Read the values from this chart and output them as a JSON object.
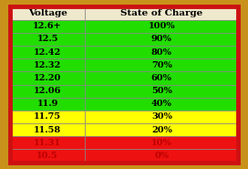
{
  "headers": [
    "Voltage",
    "State of Charge"
  ],
  "rows": [
    [
      "12.6+",
      "100%"
    ],
    [
      "12.5",
      "90%"
    ],
    [
      "12.42",
      "80%"
    ],
    [
      "12.32",
      "70%"
    ],
    [
      "12.20",
      "60%"
    ],
    [
      "12.06",
      "50%"
    ],
    [
      "11.9",
      "40%"
    ],
    [
      "11.75",
      "30%"
    ],
    [
      "11.58",
      "20%"
    ],
    [
      "11.31",
      "10%"
    ],
    [
      "10.5",
      "0%"
    ]
  ],
  "row_colors": [
    "#22DD00",
    "#22DD00",
    "#22DD00",
    "#22DD00",
    "#22DD00",
    "#22DD00",
    "#22DD00",
    "#FFFF00",
    "#FFFF00",
    "#EE1111",
    "#EE1111"
  ],
  "header_bg": "#EEE8CC",
  "header_text_color": "#000000",
  "border_color": "#CC1111",
  "grid_color": "#888888",
  "outer_bg": "#C8921A",
  "cell_text_color_red": "#BB0000",
  "font_size_header": 7.5,
  "font_size_cell": 7.0
}
